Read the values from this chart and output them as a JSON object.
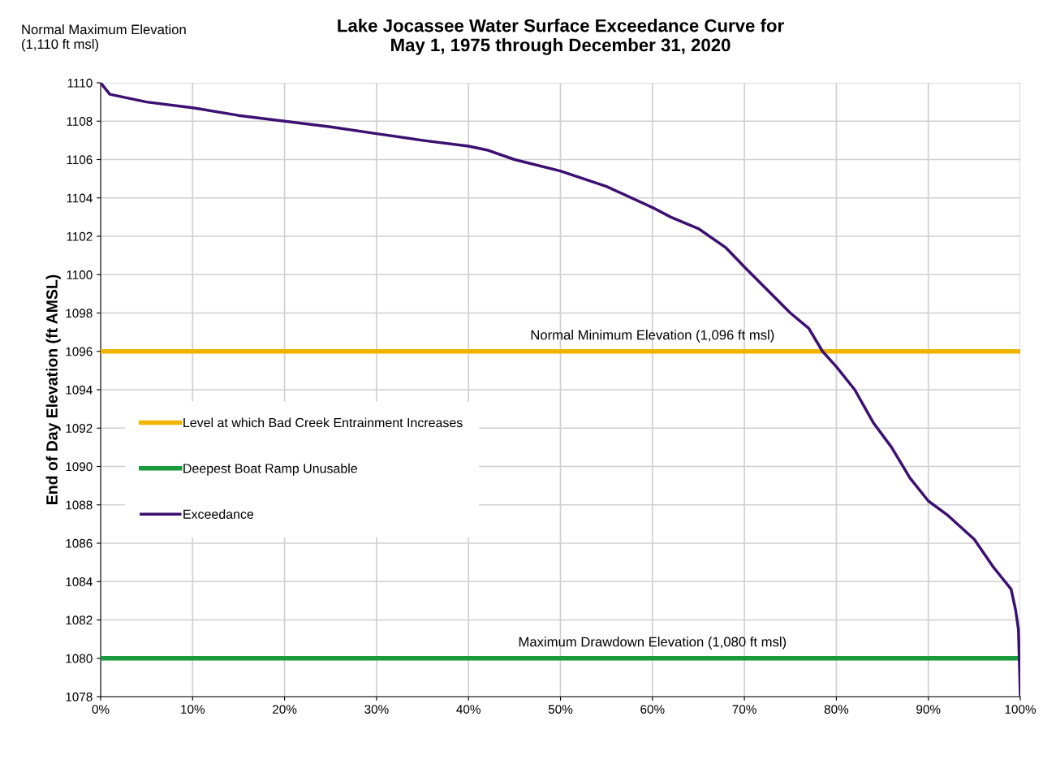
{
  "chart_data": {
    "type": "line",
    "title": "Lake Jocassee Water Surface Exceedance Curve for\nMay 1, 1975 through December 31, 2020",
    "ylabel": "End of Day Elevation (ft AMSL)",
    "annotations": [
      "Normal Maximum Elevation\n(1,110 ft msl)",
      {
        "text": "Normal Minimum Elevation (1,096 ft msl)",
        "x": 60,
        "y": 1096
      },
      {
        "text": "Maximum Drawdown Elevation (1,080 ft msl)",
        "x": 60,
        "y": 1080
      }
    ],
    "series": [
      {
        "name": "Level at which Bad Creek Entrainment Increases",
        "color": "#f0b400",
        "x": [
          0,
          100
        ],
        "values": [
          1096,
          1096
        ]
      },
      {
        "name": "Deepest Boat Ramp Unusable",
        "color": "#1a9a3c",
        "x": [
          0,
          100
        ],
        "values": [
          1080,
          1080
        ]
      },
      {
        "name": "Exceedance",
        "color": "#3b1070",
        "x": [
          0,
          1,
          5,
          10,
          15,
          20,
          25,
          30,
          35,
          40,
          42,
          45,
          50,
          55,
          60,
          62,
          65,
          68,
          70,
          75,
          77,
          78.5,
          80,
          82,
          84,
          86,
          88,
          90,
          92,
          95,
          97,
          98,
          99,
          99.5,
          99.8,
          100
        ],
        "values": [
          1110,
          1109.4,
          1109.0,
          1108.7,
          1108.3,
          1108.0,
          1107.7,
          1107.35,
          1107.0,
          1106.7,
          1106.5,
          1106.0,
          1105.4,
          1104.6,
          1103.5,
          1103.0,
          1102.4,
          1101.4,
          1100.4,
          1098.0,
          1097.2,
          1096.0,
          1095.2,
          1094.0,
          1092.3,
          1091.0,
          1089.4,
          1088.2,
          1087.5,
          1086.2,
          1084.8,
          1084.2,
          1083.6,
          1082.5,
          1081.5,
          1078
        ]
      }
    ],
    "xlim": [
      0,
      100
    ],
    "xticks": [
      {
        "value": 0,
        "label": "0%"
      },
      {
        "value": 10,
        "label": "10%"
      },
      {
        "value": 20,
        "label": "20%"
      },
      {
        "value": 30,
        "label": "30%"
      },
      {
        "value": 40,
        "label": "40%"
      },
      {
        "value": 50,
        "label": "50%"
      },
      {
        "value": 60,
        "label": "60%"
      },
      {
        "value": 70,
        "label": "70%"
      },
      {
        "value": 80,
        "label": "80%"
      },
      {
        "value": 90,
        "label": "90%"
      },
      {
        "value": 100,
        "label": "100%"
      }
    ],
    "ylim": [
      1078,
      1110
    ],
    "yticks": [
      1078,
      1080,
      1082,
      1084,
      1086,
      1088,
      1090,
      1092,
      1094,
      1096,
      1098,
      1100,
      1102,
      1104,
      1106,
      1108,
      1110
    ],
    "grid": true,
    "legend": "center left",
    "marker": "none",
    "line_style": "solid"
  }
}
